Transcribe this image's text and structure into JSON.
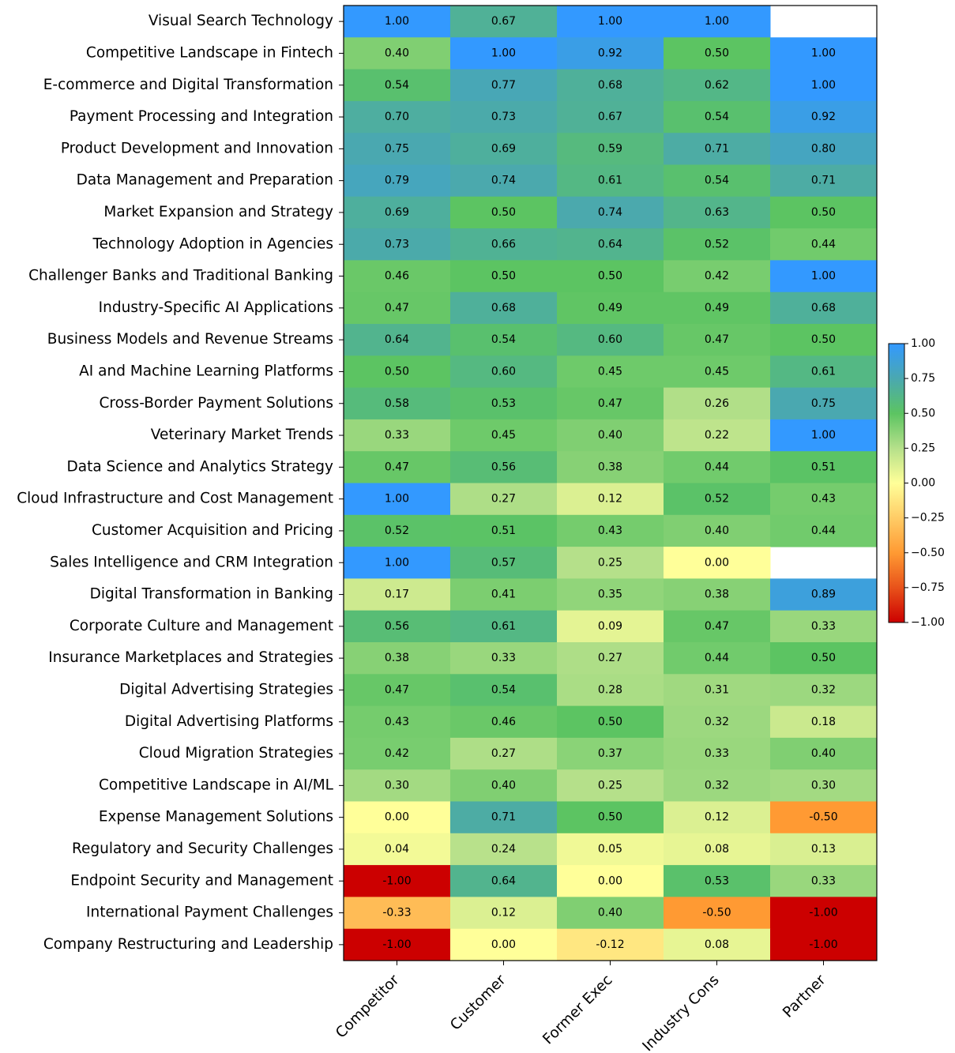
{
  "chart_data": {
    "type": "heatmap",
    "rows": [
      "Visual Search Technology",
      "Competitive Landscape in Fintech",
      "E-commerce and Digital Transformation",
      "Payment Processing and Integration",
      "Product Development and Innovation",
      "Data Management and Preparation",
      "Market Expansion and Strategy",
      "Technology Adoption in Agencies",
      "Challenger Banks and Traditional Banking",
      "Industry-Specific AI Applications",
      "Business Models and Revenue Streams",
      "AI and Machine Learning Platforms",
      "Cross-Border Payment Solutions",
      "Veterinary Market Trends",
      "Data Science and Analytics Strategy",
      "Cloud Infrastructure and Cost Management",
      "Customer Acquisition and Pricing",
      "Sales Intelligence and CRM Integration",
      "Digital Transformation in Banking",
      "Corporate Culture and Management",
      "Insurance Marketplaces and Strategies",
      "Digital Advertising Strategies",
      "Digital Advertising Platforms",
      "Cloud Migration Strategies",
      "Competitive Landscape in AI/ML",
      "Expense Management Solutions",
      "Regulatory and Security Challenges",
      "Endpoint Security and Management",
      "International Payment Challenges",
      "Company Restructuring and Leadership"
    ],
    "columns": [
      "Competitor",
      "Customer",
      "Former Exec",
      "Industry Cons",
      "Partner"
    ],
    "values": [
      [
        1,
        0.67,
        1,
        1,
        null
      ],
      [
        0.4,
        1,
        0.92,
        0.5,
        1
      ],
      [
        0.54,
        0.77,
        0.68,
        0.62,
        1
      ],
      [
        0.7,
        0.73,
        0.67,
        0.54,
        0.92
      ],
      [
        0.75,
        0.69,
        0.59,
        0.71,
        0.8
      ],
      [
        0.79,
        0.74,
        0.61,
        0.54,
        0.71
      ],
      [
        0.69,
        0.5,
        0.74,
        0.63,
        0.5
      ],
      [
        0.73,
        0.66,
        0.64,
        0.52,
        0.44
      ],
      [
        0.46,
        0.5,
        0.5,
        0.42,
        1
      ],
      [
        0.47,
        0.68,
        0.49,
        0.49,
        0.68
      ],
      [
        0.64,
        0.54,
        0.6,
        0.47,
        0.5
      ],
      [
        0.5,
        0.6,
        0.45,
        0.45,
        0.61
      ],
      [
        0.58,
        0.53,
        0.47,
        0.26,
        0.75
      ],
      [
        0.33,
        0.45,
        0.4,
        0.22,
        1
      ],
      [
        0.47,
        0.56,
        0.38,
        0.44,
        0.51
      ],
      [
        1,
        0.27,
        0.12,
        0.52,
        0.43
      ],
      [
        0.52,
        0.51,
        0.43,
        0.4,
        0.44
      ],
      [
        1,
        0.57,
        0.25,
        0,
        null
      ],
      [
        0.17,
        0.41,
        0.35,
        0.38,
        0.89
      ],
      [
        0.56,
        0.61,
        0.09,
        0.47,
        0.33
      ],
      [
        0.38,
        0.33,
        0.27,
        0.44,
        0.5
      ],
      [
        0.47,
        0.54,
        0.28,
        0.31,
        0.32
      ],
      [
        0.43,
        0.46,
        0.5,
        0.32,
        0.18
      ],
      [
        0.42,
        0.27,
        0.37,
        0.33,
        0.4
      ],
      [
        0.3,
        0.4,
        0.25,
        0.32,
        0.3
      ],
      [
        0,
        0.71,
        0.5,
        0.12,
        -0.5
      ],
      [
        0.04,
        0.24,
        0.05,
        0.08,
        0.13
      ],
      [
        -1,
        0.64,
        0,
        0.53,
        0.33
      ],
      [
        -0.33,
        0.12,
        0.4,
        -0.5,
        -1
      ],
      [
        -1,
        0,
        -0.12,
        0.08,
        -1
      ]
    ],
    "value_labels": [
      [
        "1.00",
        "0.67",
        "1.00",
        "1.00",
        null
      ],
      [
        "0.40",
        "1.00",
        "0.92",
        "0.50",
        "1.00"
      ],
      [
        "0.54",
        "0.77",
        "0.68",
        "0.62",
        "1.00"
      ],
      [
        "0.70",
        "0.73",
        "0.67",
        "0.54",
        "0.92"
      ],
      [
        "0.75",
        "0.69",
        "0.59",
        "0.71",
        "0.80"
      ],
      [
        "0.79",
        "0.74",
        "0.61",
        "0.54",
        "0.71"
      ],
      [
        "0.69",
        "0.50",
        "0.74",
        "0.63",
        "0.50"
      ],
      [
        "0.73",
        "0.66",
        "0.64",
        "0.52",
        "0.44"
      ],
      [
        "0.46",
        "0.50",
        "0.50",
        "0.42",
        "1.00"
      ],
      [
        "0.47",
        "0.68",
        "0.49",
        "0.49",
        "0.68"
      ],
      [
        "0.64",
        "0.54",
        "0.60",
        "0.47",
        "0.50"
      ],
      [
        "0.50",
        "0.60",
        "0.45",
        "0.45",
        "0.61"
      ],
      [
        "0.58",
        "0.53",
        "0.47",
        "0.26",
        "0.75"
      ],
      [
        "0.33",
        "0.45",
        "0.40",
        "0.22",
        "1.00"
      ],
      [
        "0.47",
        "0.56",
        "0.38",
        "0.44",
        "0.51"
      ],
      [
        "1.00",
        "0.27",
        "0.12",
        "0.52",
        "0.43"
      ],
      [
        "0.52",
        "0.51",
        "0.43",
        "0.40",
        "0.44"
      ],
      [
        "1.00",
        "0.57",
        "0.25",
        "0.00",
        null
      ],
      [
        "0.17",
        "0.41",
        "0.35",
        "0.38",
        "0.89"
      ],
      [
        "0.56",
        "0.61",
        "0.09",
        "0.47",
        "0.33"
      ],
      [
        "0.38",
        "0.33",
        "0.27",
        "0.44",
        "0.50"
      ],
      [
        "0.47",
        "0.54",
        "0.28",
        "0.31",
        "0.32"
      ],
      [
        "0.43",
        "0.46",
        "0.50",
        "0.32",
        "0.18"
      ],
      [
        "0.42",
        "0.27",
        "0.37",
        "0.33",
        "0.40"
      ],
      [
        "0.30",
        "0.40",
        "0.25",
        "0.32",
        "0.30"
      ],
      [
        "0.00",
        "0.71",
        "0.50",
        "0.12",
        "-0.50"
      ],
      [
        "0.04",
        "0.24",
        "0.05",
        "0.08",
        "0.13"
      ],
      [
        "-1.00",
        "0.64",
        "0.00",
        "0.53",
        "0.33"
      ],
      [
        "-0.33",
        "0.12",
        "0.40",
        "-0.50",
        "-1.00"
      ],
      [
        "-1.00",
        "0.00",
        "-0.12",
        "0.08",
        "-1.00"
      ]
    ],
    "colormap": [
      "#cc0000",
      "#e8521a",
      "#ff9a33",
      "#ffcc66",
      "#ffff99",
      "#b5e08a",
      "#5cc462",
      "#4aa8b0",
      "#3399ff"
    ],
    "clim": [
      -1,
      1
    ],
    "colorbar_ticks": [
      {
        "value": 1,
        "label": "1.00"
      },
      {
        "value": 0.75,
        "label": "0.75"
      },
      {
        "value": 0.5,
        "label": "0.50"
      },
      {
        "value": 0.25,
        "label": "0.25"
      },
      {
        "value": 0,
        "label": "0.00"
      },
      {
        "value": -0.25,
        "label": "−0.25"
      },
      {
        "value": -0.5,
        "label": "−0.50"
      },
      {
        "value": -0.75,
        "label": "−0.75"
      },
      {
        "value": -1,
        "label": "−1.00"
      }
    ]
  }
}
